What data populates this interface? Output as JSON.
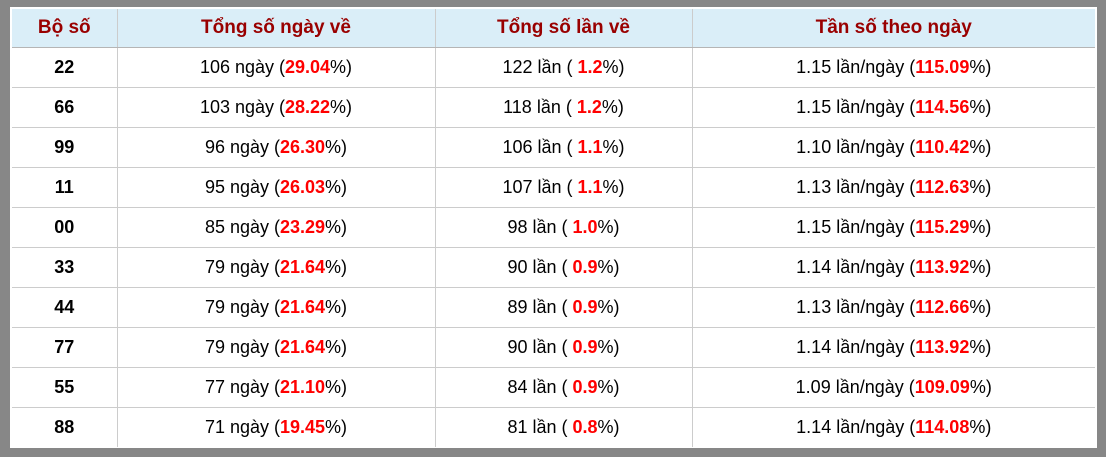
{
  "colors": {
    "frame_gray": "#878787",
    "header_bg": "#daeef8",
    "header_text": "#990000",
    "highlight_red": "#ff0000",
    "body_text": "#000000",
    "grid_line": "#cccccc"
  },
  "table": {
    "columns": [
      "Bộ số",
      "Tổng số ngày về",
      "Tổng số lần về",
      "Tần số theo ngày"
    ],
    "rows": [
      {
        "set": "22",
        "days_pre": "106 ngày (",
        "days_hl": "29.04",
        "days_post": "%)",
        "times_pre": "122 lần ( ",
        "times_hl": "1.2",
        "times_post": "%)",
        "freq_pre": "1.15 lần/ngày (",
        "freq_hl": "115.09",
        "freq_post": "%)"
      },
      {
        "set": "66",
        "days_pre": "103 ngày (",
        "days_hl": "28.22",
        "days_post": "%)",
        "times_pre": "118 lần ( ",
        "times_hl": "1.2",
        "times_post": "%)",
        "freq_pre": "1.15 lần/ngày (",
        "freq_hl": "114.56",
        "freq_post": "%)"
      },
      {
        "set": "99",
        "days_pre": "96 ngày (",
        "days_hl": "26.30",
        "days_post": "%)",
        "times_pre": "106 lần ( ",
        "times_hl": "1.1",
        "times_post": "%)",
        "freq_pre": "1.10 lần/ngày (",
        "freq_hl": "110.42",
        "freq_post": "%)"
      },
      {
        "set": "11",
        "days_pre": "95 ngày (",
        "days_hl": "26.03",
        "days_post": "%)",
        "times_pre": "107 lần ( ",
        "times_hl": "1.1",
        "times_post": "%)",
        "freq_pre": "1.13 lần/ngày (",
        "freq_hl": "112.63",
        "freq_post": "%)"
      },
      {
        "set": "00",
        "days_pre": "85 ngày (",
        "days_hl": "23.29",
        "days_post": "%)",
        "times_pre": "98 lần ( ",
        "times_hl": "1.0",
        "times_post": "%)",
        "freq_pre": "1.15 lần/ngày (",
        "freq_hl": "115.29",
        "freq_post": "%)"
      },
      {
        "set": "33",
        "days_pre": "79 ngày (",
        "days_hl": "21.64",
        "days_post": "%)",
        "times_pre": "90 lần ( ",
        "times_hl": "0.9",
        "times_post": "%)",
        "freq_pre": "1.14 lần/ngày (",
        "freq_hl": "113.92",
        "freq_post": "%)"
      },
      {
        "set": "44",
        "days_pre": "79 ngày (",
        "days_hl": "21.64",
        "days_post": "%)",
        "times_pre": "89 lần ( ",
        "times_hl": "0.9",
        "times_post": "%)",
        "freq_pre": "1.13 lần/ngày (",
        "freq_hl": "112.66",
        "freq_post": "%)"
      },
      {
        "set": "77",
        "days_pre": "79 ngày (",
        "days_hl": "21.64",
        "days_post": "%)",
        "times_pre": "90 lần ( ",
        "times_hl": "0.9",
        "times_post": "%)",
        "freq_pre": "1.14 lần/ngày (",
        "freq_hl": "113.92",
        "freq_post": "%)"
      },
      {
        "set": "55",
        "days_pre": "77 ngày (",
        "days_hl": "21.10",
        "days_post": "%)",
        "times_pre": "84 lần ( ",
        "times_hl": "0.9",
        "times_post": "%)",
        "freq_pre": "1.09 lần/ngày (",
        "freq_hl": "109.09",
        "freq_post": "%)"
      },
      {
        "set": "88",
        "days_pre": "71 ngày (",
        "days_hl": "19.45",
        "days_post": "%)",
        "times_pre": "81 lần ( ",
        "times_hl": "0.8",
        "times_post": "%)",
        "freq_pre": "1.14 lần/ngày (",
        "freq_hl": "114.08",
        "freq_post": "%)"
      }
    ]
  }
}
